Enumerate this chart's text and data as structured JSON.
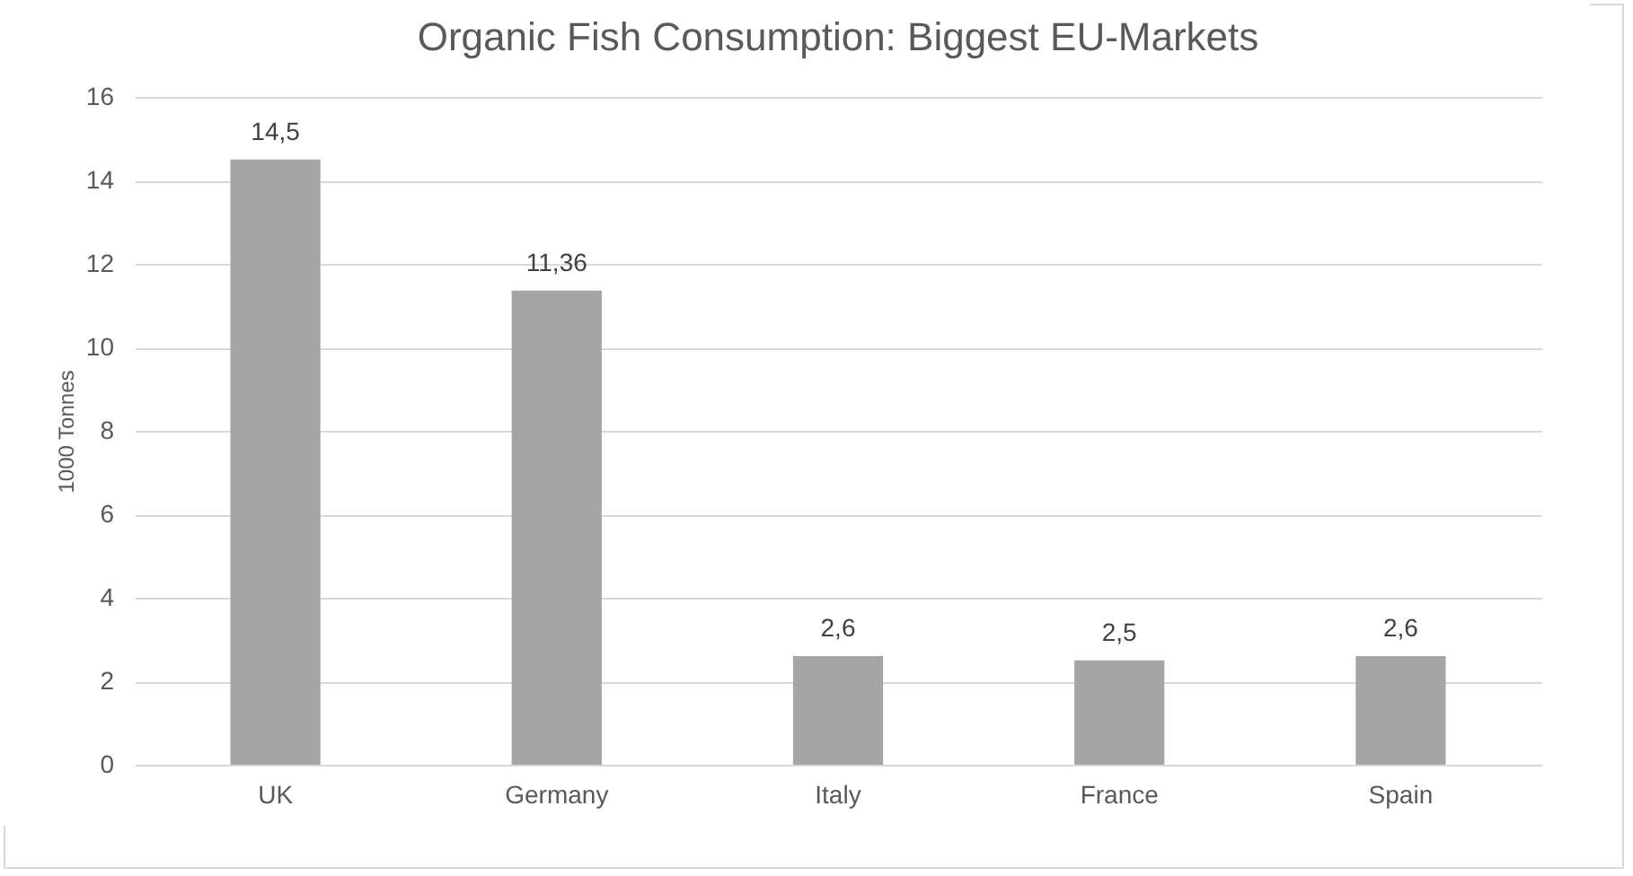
{
  "chart_data": {
    "type": "bar",
    "title": "Organic Fish Consumption: Biggest EU-Markets",
    "ylabel": "1000 Tonnes",
    "categories": [
      "UK",
      "Germany",
      "Italy",
      "France",
      "Spain"
    ],
    "values": [
      14.5,
      11.36,
      2.6,
      2.5,
      2.6
    ],
    "value_labels": [
      "14,5",
      "11,36",
      "2,6",
      "2,5",
      "2,6"
    ],
    "color": "#a5a5a5",
    "ylim": [
      0,
      16
    ],
    "yticks": [
      0,
      2,
      4,
      6,
      8,
      10,
      12,
      14,
      16
    ],
    "grid": "y"
  }
}
